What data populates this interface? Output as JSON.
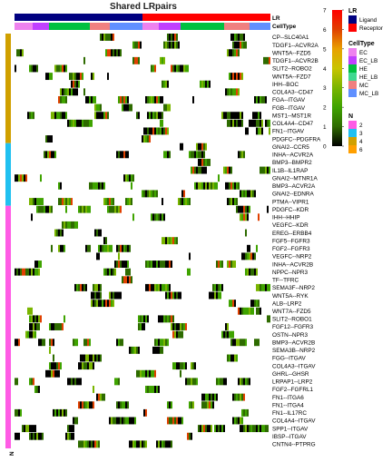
{
  "chart_data": {
    "type": "heatmap",
    "title": "Shared LRpairs",
    "rows": [
      "CP--SLC40A1",
      "TDGF1--ACVR2A",
      "WNT5A--FZD5",
      "TDGF1--ACVR2B",
      "SLIT2--ROBO2",
      "WNT5A--FZD7",
      "IHH--BOC",
      "COL4A3--CD47",
      "FGA--ITGAV",
      "FGB--ITGAV",
      "MST1--MST1R",
      "COL4A4--CD47",
      "FN1--ITGAV",
      "PDGFC--PDGFRA",
      "GNAI2--CCR5",
      "INHA--ACVR2A",
      "BMP3--BMPR2",
      "IL1B--IL1RAP",
      "GNAI2--MTNR1A",
      "BMP3--ACVR2A",
      "GNAI2--EDNRA",
      "PTMA--VIPR1",
      "PDGFC--KDR",
      "IHH--HHIP",
      "VEGFC--KDR",
      "EREG--ERBB4",
      "FGF5--FGFR3",
      "FGF2--FGFR3",
      "VEGFC--NRP2",
      "INHA--ACVR2B",
      "NPPC--NPR3",
      "TF--TFRC",
      "SEMA3F--NRP2",
      "WNT5A--RYK",
      "ALB--LRP2",
      "WNT7A--FZD5",
      "SLIT2--ROBO1",
      "FGF12--FGFR3",
      "OSTN--NPR3",
      "BMP3--ACVR2B",
      "SEMA3B--NRP2",
      "FGG--ITGAV",
      "COL4A3--ITGAV",
      "GHRL--GHSR",
      "LRPAP1--LRP2",
      "FGF2--FGFRL1",
      "FN1--ITGA6",
      "FN1--ITGA4",
      "FN1--IL17RC",
      "COL4A4--ITGAV",
      "SPP1--ITGAV",
      "IBSP--ITGAV",
      "CNTN4--PTPRG"
    ],
    "color_scale": {
      "min": 0,
      "max": 7,
      "ticks": [
        "7",
        "6",
        "5",
        "4",
        "3",
        "2",
        "1",
        "0"
      ],
      "colors": [
        "#000000",
        "#2e6b00",
        "#3fa300",
        "#7ab500",
        "#c8c400",
        "#e8a000",
        "#e04000",
        "#ff0000"
      ]
    },
    "column_annotations": {
      "LR": {
        "ligand_color": "#000080",
        "receptor_color": "#ff0000"
      },
      "CellType": {
        "EC": "#ee82ee",
        "EC_LB": "#c040ff",
        "HE": "#00c040",
        "HE_LB": "#40d890",
        "MC": "#f08080",
        "MC_LB": "#6090ff"
      }
    },
    "row_annotation": {
      "N": {
        "2": "#ff5ce5",
        "3": "#20c0f0",
        "4": "#d0a000",
        "6": "#ff9f00"
      },
      "groups": [
        {
          "n": "4",
          "count": 14
        },
        {
          "n": "3",
          "count": 8
        },
        {
          "n": "2",
          "count": 31
        }
      ]
    },
    "legend": {
      "scale_ticks": [
        "7",
        "6",
        "5",
        "4",
        "3",
        "2",
        "1",
        "0"
      ],
      "lr_title": "LR",
      "lr_items": [
        "Ligand",
        "Receptor"
      ],
      "celltype_title": "CellType",
      "celltype_items": [
        "EC",
        "EC_LB",
        "HE",
        "HE_LB",
        "MC",
        "MC_LB"
      ],
      "n_title": "N",
      "n_items": [
        "2",
        "3",
        "4",
        "6"
      ]
    },
    "annotation_labels": {
      "lr": "LR",
      "celltype": "CellType",
      "n": "N"
    }
  }
}
